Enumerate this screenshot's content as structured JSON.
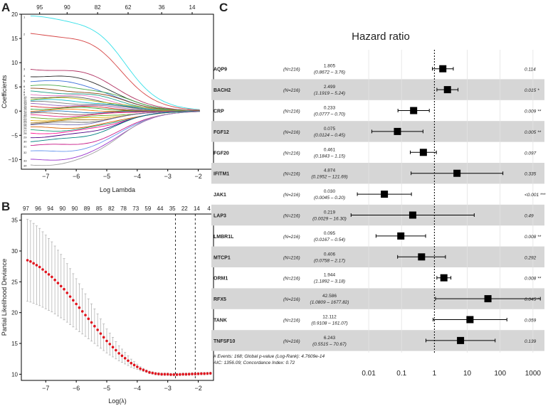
{
  "chart_data": [
    {
      "type": "line",
      "panel_label": "A",
      "xlabel": "Log Lambda",
      "ylabel": "Coefficients",
      "xlim": [
        -7.8,
        -1.5
      ],
      "ylim": [
        -12,
        20
      ],
      "x_ticks": [
        -7,
        -6,
        -5,
        -4,
        -3,
        -2
      ],
      "y_ticks": [
        -10,
        -5,
        0,
        5,
        10,
        15,
        20
      ],
      "top_ticks": [
        {
          "x": -7.2,
          "label": "95"
        },
        {
          "x": -6.3,
          "label": "90"
        },
        {
          "x": -5.3,
          "label": "82"
        },
        {
          "x": -4.3,
          "label": "62"
        },
        {
          "x": -3.2,
          "label": "36"
        },
        {
          "x": -2.2,
          "label": "14"
        }
      ],
      "series_start_values": [
        19.5,
        16,
        8.8,
        7.4,
        6.3,
        5.2,
        4.5,
        4.0,
        3.5,
        3.0,
        2.6,
        2.2,
        1.8,
        1.4,
        1.0,
        0.6,
        0.2,
        -0.2,
        -0.6,
        -1.0,
        -1.4,
        -1.8,
        -2.2,
        -2.6,
        -3.0,
        -3.5,
        -4.0,
        -4.5,
        -5.3,
        -6.2,
        -7.2,
        -8.5,
        -10.2,
        -11.2
      ],
      "series_colors": [
        "#35e0e8",
        "#d64545",
        "#b03060",
        "#2b2b2b",
        "#3a6ed8",
        "#4aa84a",
        "#8b4513",
        "#1f9e89",
        "#e377c2",
        "#555555",
        "#bcbd22",
        "#17becf",
        "#7f7f7f",
        "#9467bd",
        "#d62728",
        "#2ca02c",
        "#ff7f0e",
        "#1f77b4",
        "#8c564b",
        "#e7298a",
        "#66a61e",
        "#e6ab02",
        "#a6761d",
        "#666666",
        "#7570b3",
        "#d95f02",
        "#1b9e77",
        "#ff1493",
        "#4b0082",
        "#008080",
        "#c71585",
        "#6495ed",
        "#9932cc",
        "#a0a0a0"
      ]
    },
    {
      "type": "scatter",
      "panel_label": "B",
      "xlabel": "Log(λ)",
      "ylabel": "Partial Likelihood Deviance",
      "xlim": [
        -7.8,
        -1.5
      ],
      "ylim": [
        9,
        36
      ],
      "x_ticks": [
        -7,
        -6,
        -5,
        -4,
        -3,
        -2
      ],
      "y_ticks": [
        10,
        15,
        20,
        25,
        30,
        35
      ],
      "top_labels": [
        "97",
        "96",
        "94",
        "90",
        "90",
        "89",
        "85",
        "82",
        "78",
        "73",
        "59",
        "44",
        "35",
        "22",
        "14",
        "4"
      ],
      "vlines": [
        -2.75,
        -2.1
      ],
      "points": [
        [
          -7.6,
          28.5
        ],
        [
          -7.5,
          28.3
        ],
        [
          -7.4,
          28.0
        ],
        [
          -7.3,
          27.7
        ],
        [
          -7.2,
          27.4
        ],
        [
          -7.1,
          27.0
        ],
        [
          -7.0,
          26.6
        ],
        [
          -6.9,
          26.2
        ],
        [
          -6.8,
          25.8
        ],
        [
          -6.7,
          25.3
        ],
        [
          -6.6,
          24.8
        ],
        [
          -6.5,
          24.3
        ],
        [
          -6.4,
          23.8
        ],
        [
          -6.3,
          23.2
        ],
        [
          -6.2,
          22.6
        ],
        [
          -6.1,
          22.0
        ],
        [
          -6.0,
          21.4
        ],
        [
          -5.9,
          20.8
        ],
        [
          -5.8,
          20.2
        ],
        [
          -5.7,
          19.6
        ],
        [
          -5.6,
          19.0
        ],
        [
          -5.5,
          18.4
        ],
        [
          -5.4,
          17.8
        ],
        [
          -5.3,
          17.2
        ],
        [
          -5.2,
          16.6
        ],
        [
          -5.1,
          16.0
        ],
        [
          -5.0,
          15.4
        ],
        [
          -4.9,
          14.9
        ],
        [
          -4.8,
          14.4
        ],
        [
          -4.7,
          13.9
        ],
        [
          -4.6,
          13.4
        ],
        [
          -4.5,
          13.0
        ],
        [
          -4.4,
          12.6
        ],
        [
          -4.3,
          12.2
        ],
        [
          -4.2,
          11.8
        ],
        [
          -4.1,
          11.5
        ],
        [
          -4.0,
          11.2
        ],
        [
          -3.9,
          10.9
        ],
        [
          -3.8,
          10.7
        ],
        [
          -3.7,
          10.5
        ],
        [
          -3.6,
          10.3
        ],
        [
          -3.5,
          10.2
        ],
        [
          -3.4,
          10.1
        ],
        [
          -3.3,
          10.05
        ],
        [
          -3.2,
          10.0
        ],
        [
          -3.1,
          10.0
        ],
        [
          -3.0,
          10.0
        ],
        [
          -2.9,
          9.95
        ],
        [
          -2.8,
          9.95
        ],
        [
          -2.7,
          9.95
        ],
        [
          -2.6,
          9.97
        ],
        [
          -2.5,
          10.0
        ],
        [
          -2.4,
          10.0
        ],
        [
          -2.3,
          10.02
        ],
        [
          -2.2,
          10.05
        ],
        [
          -2.1,
          10.05
        ],
        [
          -2.0,
          10.08
        ],
        [
          -1.9,
          10.1
        ],
        [
          -1.8,
          10.1
        ],
        [
          -1.7,
          10.12
        ],
        [
          -1.6,
          10.15
        ]
      ]
    },
    {
      "type": "forest",
      "panel_label": "C",
      "title": "Hazard ratio",
      "x_scale": "log10",
      "x_ticks": [
        0.01,
        0.1,
        1,
        10,
        100,
        1000
      ],
      "x_tick_labels": [
        "0.01",
        "0.1",
        "1",
        "10",
        "100",
        "1000"
      ],
      "reference_line": 1,
      "rows": [
        {
          "name": "AQP9",
          "n": "(N=216)",
          "hr": "1.805",
          "ci": "(0.8672 –   3.76)",
          "hr_val": 1.805,
          "lo": 0.8672,
          "hi": 3.76,
          "p": "0.114"
        },
        {
          "name": "BACH2",
          "n": "(N=216)",
          "hr": "2.499",
          "ci": "(1.1919 –   5.24)",
          "hr_val": 2.499,
          "lo": 1.1919,
          "hi": 5.24,
          "p": "0.015 *"
        },
        {
          "name": "CRP",
          "n": "(N=216)",
          "hr": "0.233",
          "ci": "(0.0777 –   0.70)",
          "hr_val": 0.233,
          "lo": 0.0777,
          "hi": 0.7,
          "p": "0.009 **"
        },
        {
          "name": "FGF12",
          "n": "(N=216)",
          "hr": "0.075",
          "ci": "(0.0124 –   0.45)",
          "hr_val": 0.075,
          "lo": 0.0124,
          "hi": 0.45,
          "p": "0.005 **"
        },
        {
          "name": "FGF20",
          "n": "(N=216)",
          "hr": "0.461",
          "ci": "(0.1843 –   1.15)",
          "hr_val": 0.461,
          "lo": 0.1843,
          "hi": 1.15,
          "p": "0.097"
        },
        {
          "name": "IFITM1",
          "n": "(N=216)",
          "hr": "4.874",
          "ci": "(0.1952 – 121.69)",
          "hr_val": 4.874,
          "lo": 0.1952,
          "hi": 121.69,
          "p": "0.335"
        },
        {
          "name": "JAK1",
          "n": "(N=216)",
          "hr": "0.030",
          "ci": "(0.0045 –   0.20)",
          "hr_val": 0.03,
          "lo": 0.0045,
          "hi": 0.2,
          "p": "<0.001 ***"
        },
        {
          "name": "LAP3",
          "n": "(N=216)",
          "hr": "0.219",
          "ci": "(0.0029 –  16.30)",
          "hr_val": 0.219,
          "lo": 0.0029,
          "hi": 16.3,
          "p": "0.49"
        },
        {
          "name": "LMBR1L",
          "n": "(N=216)",
          "hr": "0.095",
          "ci": "(0.0167 –   0.54)",
          "hr_val": 0.095,
          "lo": 0.0167,
          "hi": 0.54,
          "p": "0.008 **"
        },
        {
          "name": "MTCP1",
          "n": "(N=216)",
          "hr": "0.406",
          "ci": "(0.0758 –   2.17)",
          "hr_val": 0.406,
          "lo": 0.0758,
          "hi": 2.17,
          "p": "0.292"
        },
        {
          "name": "ORM1",
          "n": "(N=216)",
          "hr": "1.944",
          "ci": "(1.1892 –   3.18)",
          "hr_val": 1.944,
          "lo": 1.1892,
          "hi": 3.18,
          "p": "0.008 **"
        },
        {
          "name": "RFX5",
          "n": "(N=216)",
          "hr": "42.586",
          "ci": "(1.0809 – 1677.82)",
          "hr_val": 42.586,
          "lo": 1.0809,
          "hi": 1677.82,
          "p": "0.045 *"
        },
        {
          "name": "TANK",
          "n": "(N=216)",
          "hr": "12.112",
          "ci": "(0.9108 – 161.07)",
          "hr_val": 12.112,
          "lo": 0.9108,
          "hi": 161.07,
          "p": "0.059"
        },
        {
          "name": "TNFSF10",
          "n": "(N=216)",
          "hr": "6.243",
          "ci": "(0.5515 –  70.67)",
          "hr_val": 6.243,
          "lo": 0.5515,
          "hi": 70.67,
          "p": "0.139"
        }
      ],
      "footer_lines": [
        "# Events: 168; Global p-value (Log-Rank): 4.7609e-14",
        "AIC: 1356.09; Concordance Index: 0.72"
      ]
    }
  ]
}
